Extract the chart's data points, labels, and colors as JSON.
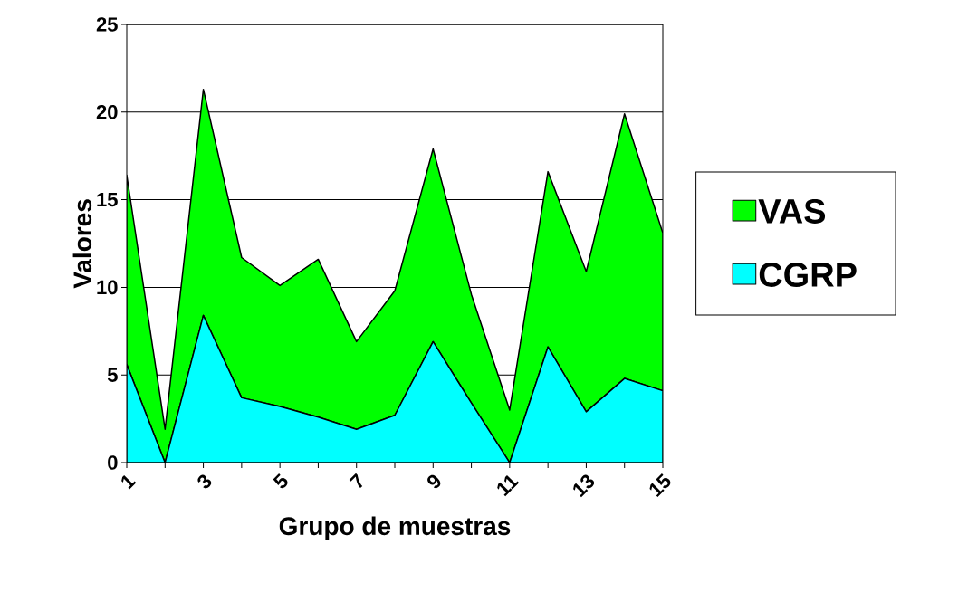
{
  "chart_data": {
    "type": "area",
    "xlabel": "Grupo de muestras",
    "ylabel": "Valores",
    "categories": [
      "1",
      null,
      "3",
      null,
      "5",
      null,
      "7",
      null,
      "9",
      null,
      "11",
      null,
      "13",
      null,
      "15"
    ],
    "series": [
      {
        "name": "CGRP",
        "color": "#00ffff",
        "values": [
          5.6,
          0,
          8.4,
          3.7,
          3.2,
          2.6,
          1.9,
          2.7,
          6.9,
          3.4,
          0,
          6.6,
          2.9,
          4.8,
          4.1
        ]
      },
      {
        "name": "VAS",
        "color": "#00ff00",
        "values": [
          10.8,
          1.9,
          12.9,
          8.0,
          6.9,
          9.0,
          5.0,
          7.1,
          11.0,
          6.2,
          3.0,
          10.0,
          8.0,
          15.1,
          9.0
        ]
      }
    ],
    "stacked": true,
    "ylim": [
      0,
      25
    ],
    "yticks": [
      0,
      5,
      10,
      15,
      20,
      25
    ],
    "grid": "y",
    "legend": "right"
  }
}
